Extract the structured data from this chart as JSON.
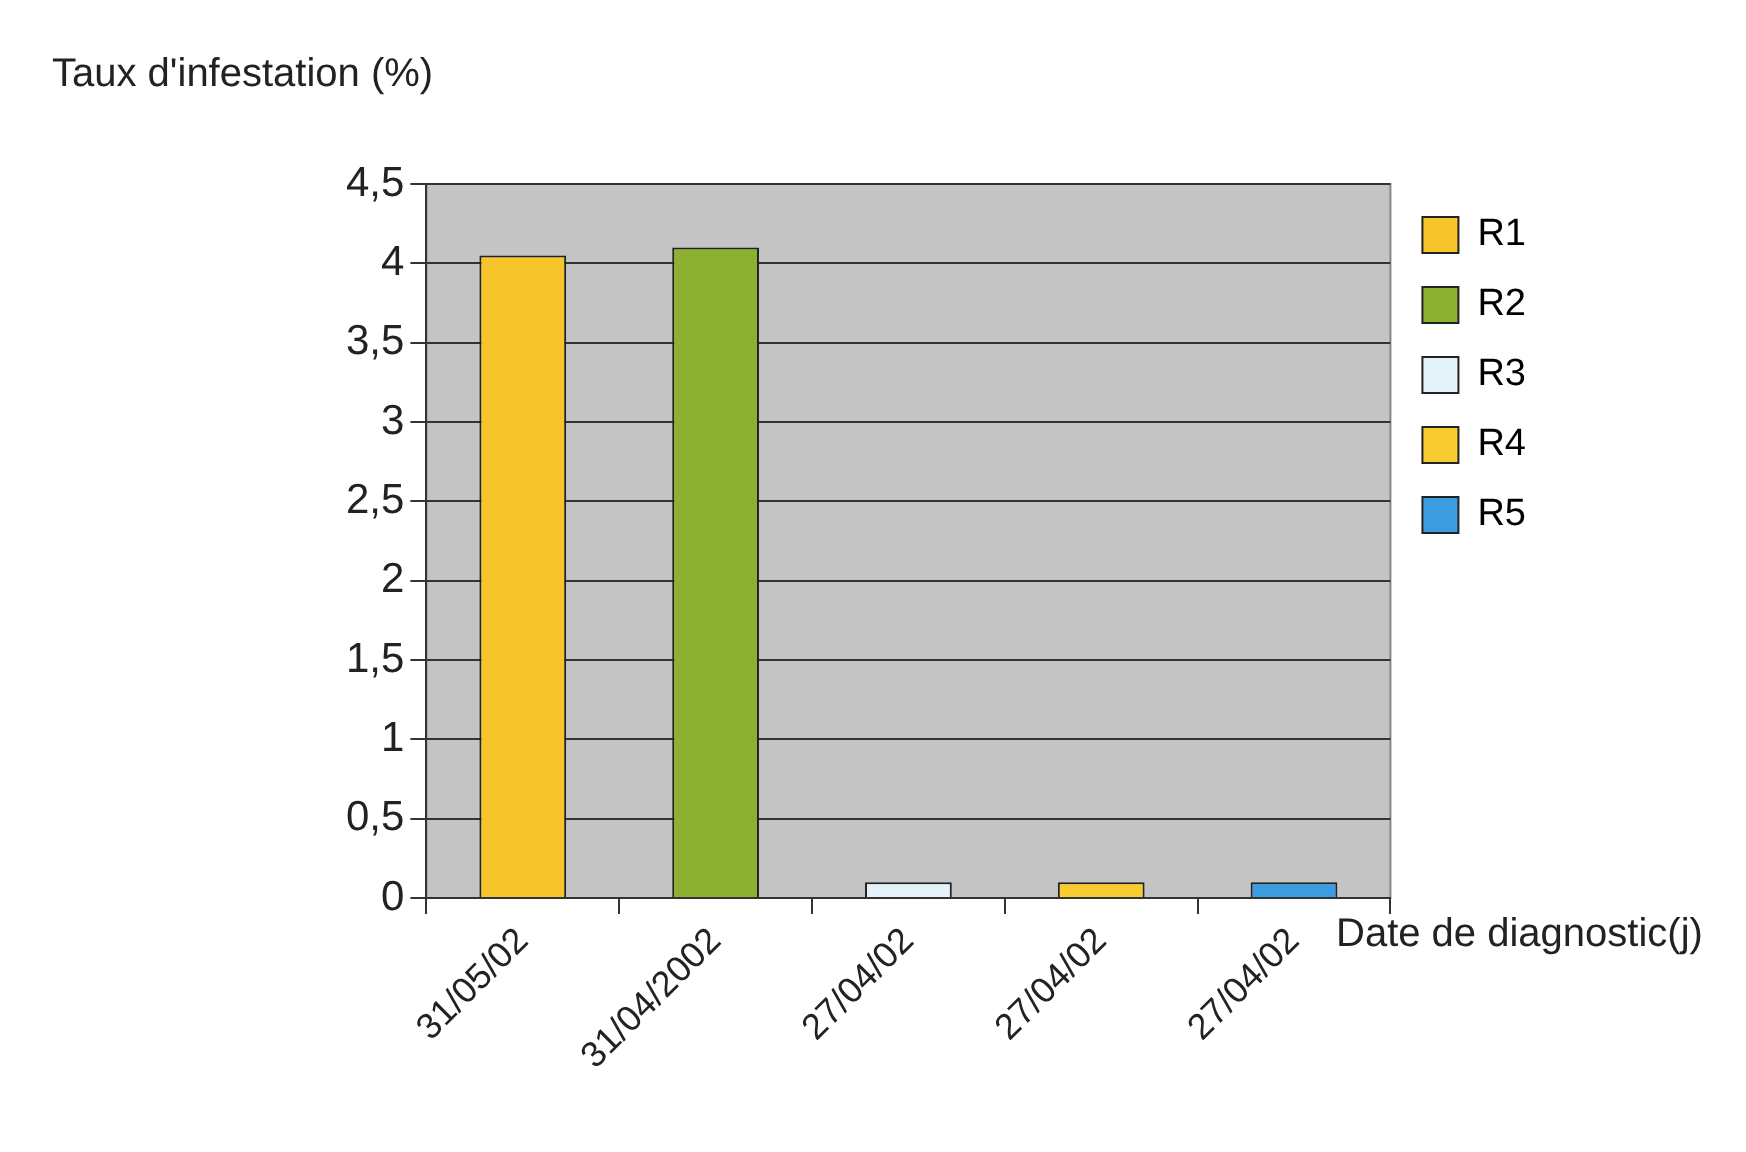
{
  "chart_data": {
    "type": "bar",
    "xlabel": "Date de diagnostic(j)",
    "ylabel": "Taux d'infestation (%)",
    "categories": [
      "31/05/02",
      "31/04/2002",
      "27/04/02",
      "27/04/02",
      "27/04/02"
    ],
    "series": [
      {
        "name": "R1",
        "color": "#f8c42c",
        "values": [
          4.05,
          null,
          null,
          null,
          null
        ]
      },
      {
        "name": "R2",
        "color": "#8cb030",
        "values": [
          null,
          4.1,
          null,
          null,
          null
        ]
      },
      {
        "name": "R3",
        "color": "#e4f2fa",
        "values": [
          null,
          null,
          0.1,
          null,
          null
        ]
      },
      {
        "name": "R4",
        "color": "#f8cc30",
        "values": [
          null,
          null,
          null,
          0.1,
          null
        ]
      },
      {
        "name": "R5",
        "color": "#3c9ce0",
        "values": [
          null,
          null,
          null,
          null,
          0.1
        ]
      }
    ],
    "ylim": [
      0,
      4.5
    ],
    "yticks": [
      0,
      {
        "value": 0.5,
        "label": "0,5"
      },
      1,
      {
        "value": 1.5,
        "label": "1,5"
      },
      2,
      {
        "value": 2.5,
        "label": "2,5"
      },
      3,
      {
        "value": 3.5,
        "label": "3,5"
      },
      4,
      {
        "value": 4.5,
        "label": "4,5"
      }
    ],
    "grid": "y",
    "legend": "top right"
  }
}
